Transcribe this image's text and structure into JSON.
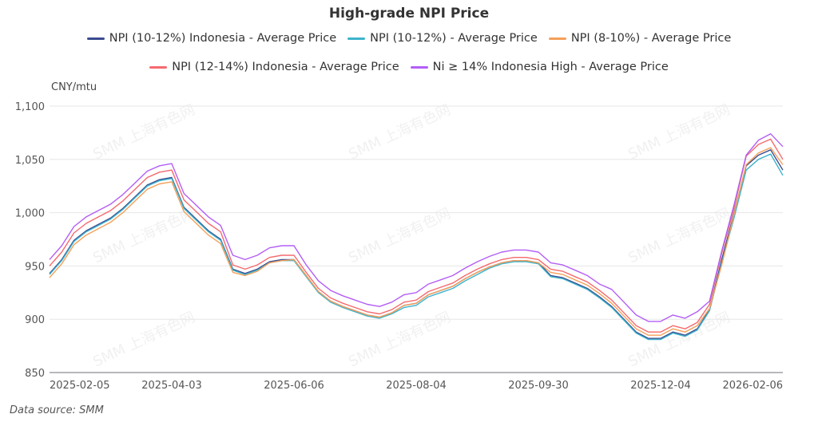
{
  "chart_data": {
    "type": "line",
    "title": "High-grade NPI Price",
    "ylabel": "CNY/mtu",
    "ylim": [
      850,
      1100
    ],
    "yticks": [
      850,
      900,
      950,
      1000,
      1050,
      1100
    ],
    "ytick_labels": [
      "850",
      "900",
      "950",
      "1,000",
      "1,050",
      "1,100"
    ],
    "x_ticks": [
      "2025-02-05",
      "2025-04-03",
      "2025-06-06",
      "2025-08-04",
      "2025-09-30",
      "2025-12-04",
      "2026-02-06"
    ],
    "grid": true,
    "legend_placement": "top",
    "series": [
      {
        "name": "NPI (10-12%) Indonesia - Average Price",
        "color": "#3a4b8f",
        "values": [
          943,
          956,
          974,
          983,
          989,
          995,
          1004,
          1015,
          1026,
          1031,
          1033,
          1005,
          994,
          983,
          975,
          947,
          943,
          947,
          954,
          956,
          956,
          941,
          926,
          917,
          912,
          908,
          904,
          902,
          906,
          913,
          915,
          923,
          927,
          931,
          938,
          944,
          949,
          953,
          955,
          955,
          953,
          941,
          939,
          934,
          929,
          921,
          912,
          900,
          888,
          882,
          882,
          888,
          885,
          891,
          909,
          956,
          999,
          1044,
          1054,
          1059,
          1040
        ]
      },
      {
        "name": "NPI (10-12%) - Average Price",
        "color": "#3db3cc",
        "values": [
          942,
          955,
          973,
          982,
          988,
          994,
          1003,
          1014,
          1025,
          1030,
          1032,
          1004,
          993,
          982,
          974,
          946,
          942,
          946,
          953,
          955,
          955,
          940,
          925,
          916,
          911,
          907,
          903,
          901,
          905,
          911,
          913,
          921,
          925,
          929,
          936,
          942,
          948,
          952,
          954,
          954,
          952,
          940,
          938,
          933,
          928,
          920,
          911,
          899,
          887,
          881,
          881,
          887,
          884,
          890,
          908,
          953,
          995,
          1040,
          1050,
          1055,
          1035
        ]
      },
      {
        "name": "NPI (8-10%) - Average Price",
        "color": "#f4a05a",
        "values": [
          939,
          952,
          970,
          979,
          985,
          991,
          1000,
          1011,
          1022,
          1027,
          1029,
          1001,
          990,
          979,
          971,
          944,
          941,
          945,
          953,
          955,
          956,
          941,
          926,
          917,
          912,
          908,
          904,
          902,
          906,
          913,
          915,
          923,
          927,
          931,
          938,
          944,
          949,
          953,
          955,
          955,
          953,
          944,
          942,
          937,
          932,
          924,
          915,
          903,
          891,
          885,
          885,
          891,
          888,
          894,
          910,
          951,
          998,
          1045,
          1056,
          1061,
          1045
        ]
      },
      {
        "name": "NPI (12-14%) Indonesia - Average Price",
        "color": "#f56a6e",
        "values": [
          950,
          963,
          981,
          990,
          996,
          1002,
          1011,
          1022,
          1033,
          1038,
          1040,
          1012,
          1001,
          990,
          982,
          951,
          947,
          951,
          958,
          960,
          960,
          944,
          929,
          920,
          915,
          911,
          907,
          905,
          909,
          916,
          918,
          926,
          930,
          934,
          941,
          947,
          952,
          956,
          958,
          958,
          956,
          947,
          945,
          940,
          935,
          927,
          918,
          906,
          894,
          888,
          888,
          894,
          891,
          897,
          914,
          962,
          1004,
          1053,
          1064,
          1069,
          1050
        ]
      },
      {
        "name": "Ni ≥ 14% Indonesia High - Average Price",
        "color": "#b35ef5",
        "values": [
          956,
          969,
          987,
          996,
          1002,
          1008,
          1017,
          1028,
          1039,
          1044,
          1046,
          1018,
          1007,
          996,
          988,
          960,
          956,
          960,
          967,
          969,
          969,
          951,
          936,
          927,
          922,
          918,
          914,
          912,
          916,
          923,
          925,
          933,
          937,
          941,
          948,
          954,
          959,
          963,
          965,
          965,
          963,
          953,
          951,
          946,
          941,
          933,
          928,
          916,
          904,
          898,
          898,
          904,
          901,
          907,
          917,
          964,
          1007,
          1054,
          1068,
          1074,
          1062
        ]
      }
    ]
  },
  "watermark": "SMM 上海有色网",
  "footer": {
    "source": "Data source:  SMM"
  }
}
